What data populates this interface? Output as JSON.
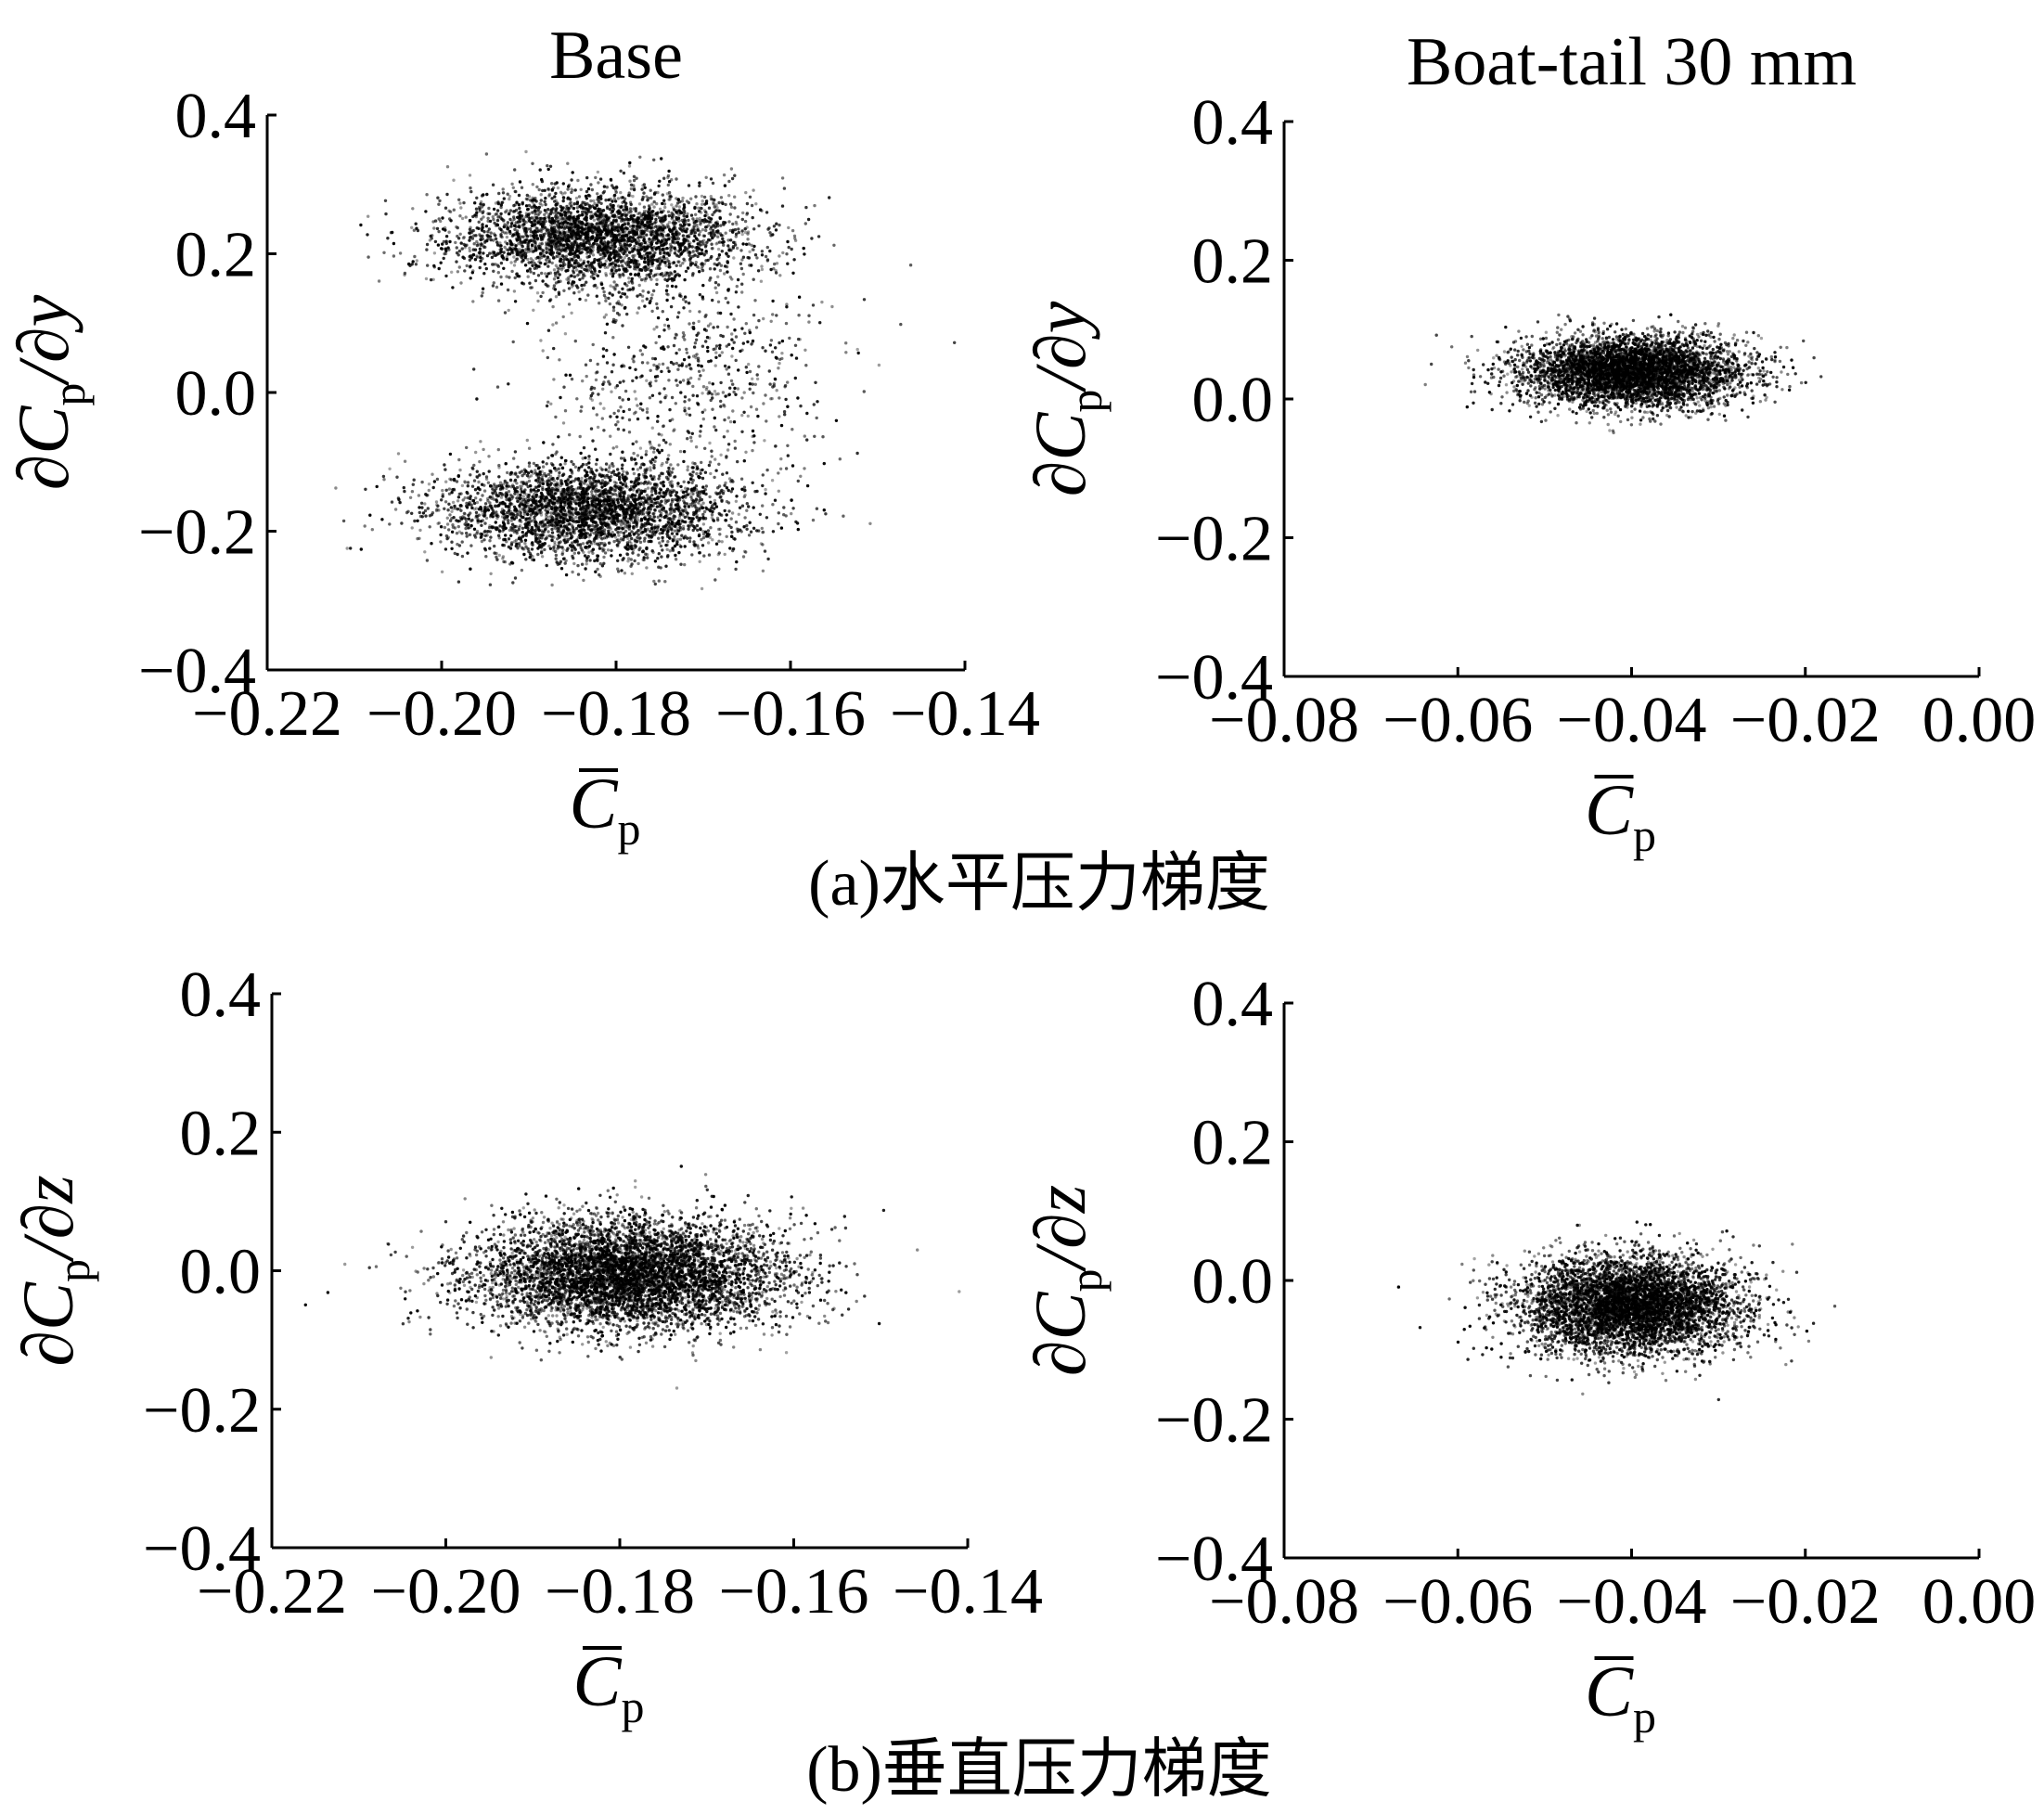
{
  "figure": {
    "captions": [
      {
        "text": "(a)水平压力梯度"
      },
      {
        "text": "(b)垂直压力梯度"
      }
    ]
  },
  "chart_data": [
    {
      "type": "scatter",
      "title": "Base",
      "xlabel": {
        "base": "C",
        "sub": "p",
        "overbar": true
      },
      "ylabel": {
        "prefix": "∂C",
        "sub": "p",
        "suffix": "/∂y"
      },
      "xlim": [
        -0.22,
        -0.14
      ],
      "ylim": [
        -0.4,
        0.4
      ],
      "xticks": [
        -0.22,
        -0.2,
        -0.18,
        -0.16,
        -0.14
      ],
      "xtick_labels": [
        "−0.22",
        "−0.20",
        "−0.18",
        "−0.16",
        "−0.14"
      ],
      "yticks": [
        -0.4,
        -0.2,
        0.0,
        0.2,
        0.4
      ],
      "ytick_labels": [
        "−0.4",
        "−0.2",
        "0.0",
        "0.2",
        "0.4"
      ],
      "grid": false,
      "series": [
        {
          "clusters": [
            {
              "center": [
                -0.182,
                0.225
              ],
              "spread": [
                0.0085,
                0.035
              ],
              "n": 3200
            },
            {
              "center": [
                -0.183,
                -0.17
              ],
              "spread": [
                0.0085,
                0.035
              ],
              "n": 3200
            },
            {
              "center": [
                -0.172,
                0.03
              ],
              "spread": [
                0.008,
                0.09
              ],
              "n": 700
            }
          ]
        }
      ]
    },
    {
      "type": "scatter",
      "title": "Boat-tail 30 mm",
      "xlabel": {
        "base": "C",
        "sub": "p",
        "overbar": true
      },
      "ylabel": {
        "prefix": "∂C",
        "sub": "p",
        "suffix": "/∂y"
      },
      "xlim": [
        -0.08,
        0.0
      ],
      "ylim": [
        -0.4,
        0.4
      ],
      "xticks": [
        -0.08,
        -0.06,
        -0.04,
        -0.02,
        0.0
      ],
      "xtick_labels": [
        "−0.08",
        "−0.06",
        "−0.04",
        "−0.02",
        "0.00"
      ],
      "yticks": [
        -0.4,
        -0.2,
        0.0,
        0.2,
        0.4
      ],
      "ytick_labels": [
        "−0.4",
        "−0.2",
        "0.0",
        "0.2",
        "0.4"
      ],
      "grid": false,
      "series": [
        {
          "clusters": [
            {
              "center": [
                -0.04,
                0.04
              ],
              "spread": [
                0.0065,
                0.025
              ],
              "n": 4500
            }
          ]
        }
      ]
    },
    {
      "type": "scatter",
      "title": "",
      "xlabel": {
        "base": "C",
        "sub": "p",
        "overbar": true
      },
      "ylabel": {
        "prefix": "∂C",
        "sub": "p",
        "suffix": "/∂z"
      },
      "xlim": [
        -0.22,
        -0.14
      ],
      "ylim": [
        -0.4,
        0.4
      ],
      "xticks": [
        -0.22,
        -0.2,
        -0.18,
        -0.16,
        -0.14
      ],
      "xtick_labels": [
        "−0.22",
        "−0.20",
        "−0.18",
        "−0.16",
        "−0.14"
      ],
      "yticks": [
        -0.4,
        -0.2,
        0.0,
        0.2,
        0.4
      ],
      "ytick_labels": [
        "−0.4",
        "−0.2",
        "0.0",
        "0.2",
        "0.4"
      ],
      "grid": false,
      "series": [
        {
          "clusters": [
            {
              "center": [
                -0.179,
                -0.005
              ],
              "spread": [
                0.009,
                0.04
              ],
              "n": 5500
            }
          ]
        }
      ]
    },
    {
      "type": "scatter",
      "title": "",
      "xlabel": {
        "base": "C",
        "sub": "p",
        "overbar": true
      },
      "ylabel": {
        "prefix": "∂C",
        "sub": "p",
        "suffix": "/∂z"
      },
      "xlim": [
        -0.08,
        0.0
      ],
      "ylim": [
        -0.4,
        0.4
      ],
      "xticks": [
        -0.08,
        -0.06,
        -0.04,
        -0.02,
        0.0
      ],
      "xtick_labels": [
        "−0.08",
        "−0.06",
        "−0.04",
        "−0.02",
        "0.00"
      ],
      "yticks": [
        -0.4,
        -0.2,
        0.0,
        0.2,
        0.4
      ],
      "ytick_labels": [
        "−0.4",
        "−0.2",
        "0.0",
        "0.2",
        "0.4"
      ],
      "grid": false,
      "series": [
        {
          "clusters": [
            {
              "center": [
                -0.04,
                -0.035
              ],
              "spread": [
                0.0065,
                0.035
              ],
              "n": 5000
            }
          ]
        }
      ]
    }
  ]
}
